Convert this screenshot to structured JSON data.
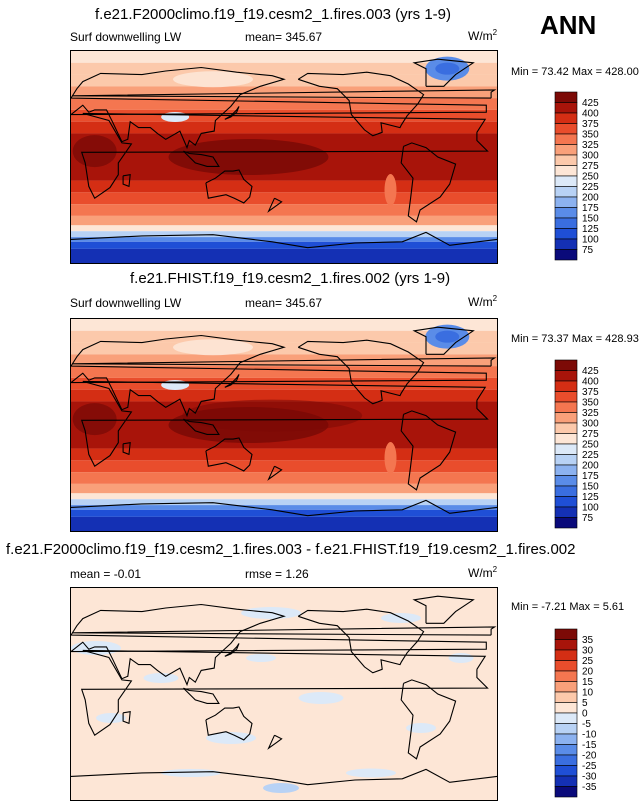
{
  "season": "ANN",
  "panels": [
    {
      "title": "f.e21.F2000climo.f19_f19.cesm2_1.fires.003 (yrs 1-9)",
      "left_label": "Surf downwelling LW",
      "center_label": "mean= 345.67",
      "units_base": "W/m",
      "units_exp": "2",
      "minmax": "Min =  73.42 Max = 428.00",
      "colorbar_levels": [
        "425",
        "400",
        "375",
        "350",
        "325",
        "300",
        "275",
        "250",
        "225",
        "200",
        "175",
        "150",
        "125",
        "100",
        "75"
      ]
    },
    {
      "title": "f.e21.FHIST.f19_f19.cesm2_1.fires.002 (yrs 1-9)",
      "left_label": "Surf downwelling LW",
      "center_label": "mean= 345.67",
      "units_base": "W/m",
      "units_exp": "2",
      "minmax": "Min =  73.37 Max = 428.93",
      "colorbar_levels": [
        "425",
        "400",
        "375",
        "350",
        "325",
        "300",
        "275",
        "250",
        "225",
        "200",
        "175",
        "150",
        "125",
        "100",
        "75"
      ]
    },
    {
      "title": "f.e21.F2000climo.f19_f19.cesm2_1.fires.003 - f.e21.FHIST.f19_f19.cesm2_1.fires.002",
      "left_label": "mean =  -0.01",
      "center_label": "rmse =   1.26",
      "units_base": "W/m",
      "units_exp": "2",
      "minmax": "Min =  -7.21 Max =   5.61",
      "colorbar_levels": [
        "35",
        "30",
        "25",
        "20",
        "15",
        "10",
        "5",
        "0",
        "-5",
        "-10",
        "-15",
        "-20",
        "-25",
        "-30",
        "-35"
      ]
    }
  ],
  "chart_data": [
    {
      "type": "heatmap",
      "title": "f.e21.F2000climo.f19_f19.cesm2_1.fires.003 (yrs 1-9)",
      "variable": "Surf downwelling LW",
      "units": "W/m2",
      "mean": 345.67,
      "min": 73.42,
      "max": 428.0,
      "levels": [
        75,
        100,
        125,
        150,
        175,
        200,
        225,
        250,
        275,
        300,
        325,
        350,
        375,
        400,
        425
      ]
    },
    {
      "type": "heatmap",
      "title": "f.e21.FHIST.f19_f19.cesm2_1.fires.002 (yrs 1-9)",
      "variable": "Surf downwelling LW",
      "units": "W/m2",
      "mean": 345.67,
      "min": 73.37,
      "max": 428.93,
      "levels": [
        75,
        100,
        125,
        150,
        175,
        200,
        225,
        250,
        275,
        300,
        325,
        350,
        375,
        400,
        425
      ]
    },
    {
      "type": "heatmap",
      "title": "f.e21.F2000climo.f19_f19.cesm2_1.fires.003 - f.e21.FHIST.f19_f19.cesm2_1.fires.002",
      "variable": "difference",
      "units": "W/m2",
      "mean": -0.01,
      "rmse": 1.26,
      "min": -7.21,
      "max": 5.61,
      "levels": [
        -35,
        -30,
        -25,
        -20,
        -15,
        -10,
        -5,
        0,
        5,
        10,
        15,
        20,
        25,
        30,
        35
      ]
    }
  ],
  "colors": {
    "abs_scale": [
      "#0a0a7a",
      "#1430b4",
      "#1f4fd6",
      "#3a6ee0",
      "#5a8ce8",
      "#8cb2f0",
      "#b8d2f5",
      "#dce9f8",
      "#fde6d6",
      "#fcc9ab",
      "#f9a07a",
      "#f47650",
      "#e94d2c",
      "#d42e14",
      "#a8140a",
      "#7c0a06"
    ],
    "diff_scale": [
      "#0a0a7a",
      "#1430b4",
      "#1f4fd6",
      "#3a6ee0",
      "#5a8ce8",
      "#8cb2f0",
      "#b8d2f5",
      "#dce9f8",
      "#fde6d6",
      "#fcc9ab",
      "#f9a07a",
      "#f47650",
      "#e94d2c",
      "#d42e14",
      "#a8140a",
      "#7c0a06"
    ]
  }
}
